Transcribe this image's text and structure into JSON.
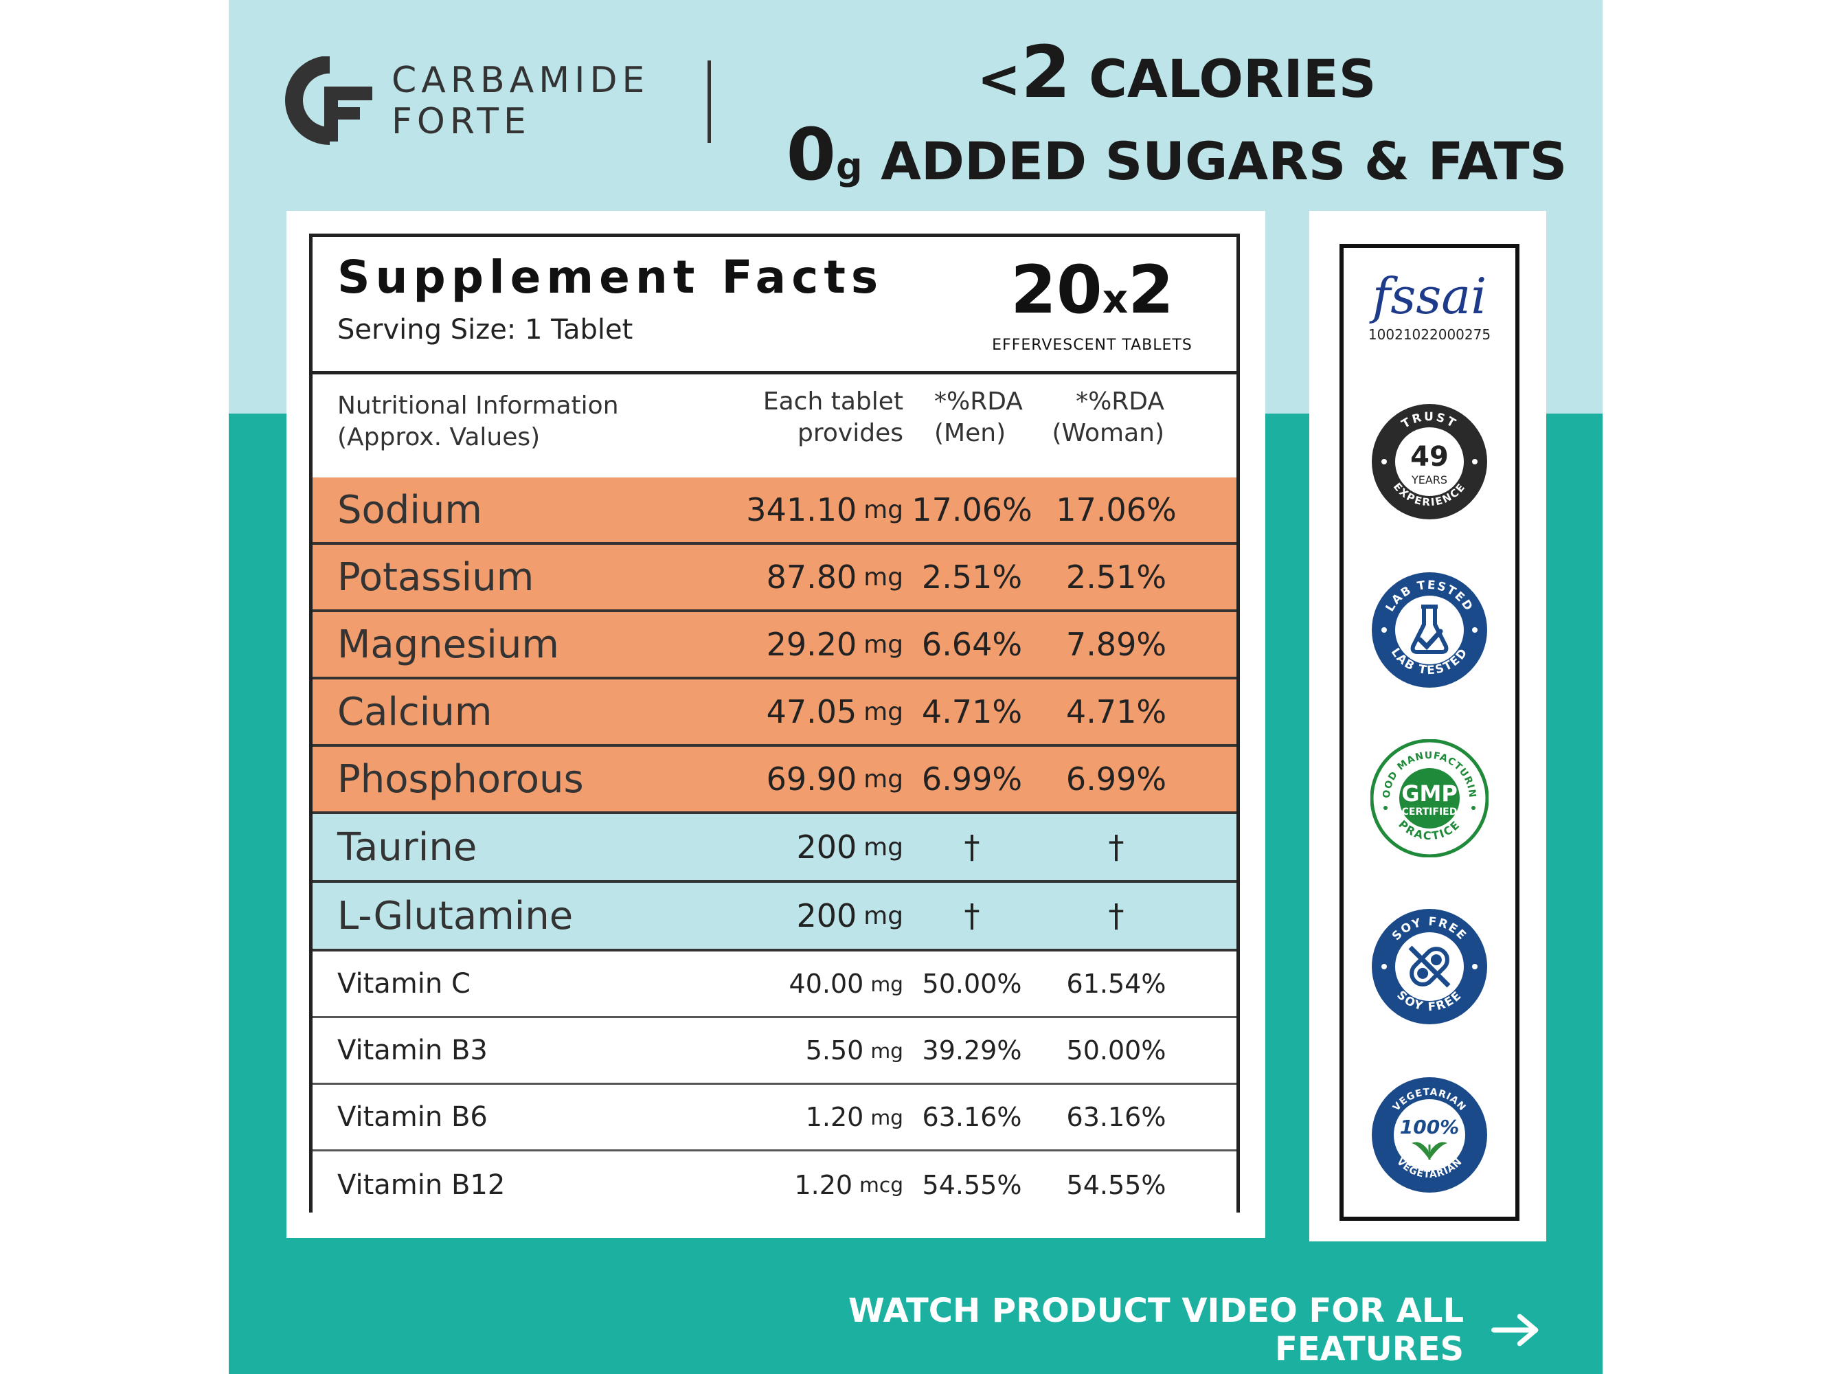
{
  "brand": {
    "line1": "CARBAMIDE",
    "line2": "FORTE"
  },
  "headline": {
    "line1_prefix": "<",
    "line1_number": "2",
    "line1_text": " CALORIES",
    "line2_number": "0",
    "line2_unit": "g",
    "line2_text": " ADDED SUGARS & FATS"
  },
  "facts": {
    "title": "Supplement Facts",
    "serving": "Serving Size: 1 Tablet",
    "pack_count": "20",
    "pack_x": "x",
    "pack_mult": "2",
    "pack_label": "EFFERVESCENT TABLETS",
    "col_info_line1": "Nutritional Information",
    "col_info_line2": "(Approx. Values)",
    "col_amount_line1": "Each tablet",
    "col_amount_line2": "provides",
    "col_men_line1": "*%RDA",
    "col_men_line2": "(Men)",
    "col_woman_line1": "*%RDA",
    "col_woman_line2": "(Woman)",
    "rows": [
      {
        "name": "Sodium",
        "amount": "341.10",
        "unit": "mg",
        "men": "17.06%",
        "woman": "17.06%"
      },
      {
        "name": "Potassium",
        "amount": "87.80",
        "unit": "mg",
        "men": "2.51%",
        "woman": "2.51%"
      },
      {
        "name": "Magnesium",
        "amount": "29.20",
        "unit": "mg",
        "men": "6.64%",
        "woman": "7.89%"
      },
      {
        "name": "Calcium",
        "amount": "47.05",
        "unit": "mg",
        "men": "4.71%",
        "woman": "4.71%"
      },
      {
        "name": "Phosphorous",
        "amount": "69.90",
        "unit": "mg",
        "men": "6.99%",
        "woman": "6.99%"
      },
      {
        "name": "Taurine",
        "amount": "200",
        "unit": "mg",
        "men": "†",
        "woman": "†"
      },
      {
        "name": "L-Glutamine",
        "amount": "200",
        "unit": "mg",
        "men": "†",
        "woman": "†"
      },
      {
        "name": "Vitamin C",
        "amount": "40.00",
        "unit": "mg",
        "men": "50.00%",
        "woman": "61.54%"
      },
      {
        "name": "Vitamin B3",
        "amount": "5.50",
        "unit": "mg",
        "men": "39.29%",
        "woman": "50.00%"
      },
      {
        "name": "Vitamin B6",
        "amount": "1.20",
        "unit": "mg",
        "men": "63.16%",
        "woman": "63.16%"
      },
      {
        "name": "Vitamin B12",
        "amount": "1.20",
        "unit": "mcg",
        "men": "54.55%",
        "woman": "54.55%"
      }
    ]
  },
  "badges": {
    "fssai_word": "fssai",
    "fssai_number": "10021022000275",
    "trust_top": "TRUST",
    "trust_years_num": "49",
    "trust_years_word": "YEARS",
    "trust_bottom": "EXPERIENCE",
    "lab_top": "LAB TESTED",
    "lab_bottom": "LAB TESTED",
    "gmp_ring": "GOOD MANUFACTURING",
    "gmp_main": "GMP",
    "gmp_sub": "CERTIFIED",
    "gmp_bottom": "PRACTICE",
    "soy_top": "SOY FREE",
    "soy_bottom": "SOY FREE",
    "veg_top": "VEGETARIAN",
    "veg_main": "100%",
    "veg_bottom": "VEGETARIAN"
  },
  "footer": {
    "cta": "WATCH PRODUCT VIDEO FOR ALL FEATURES"
  },
  "colors": {
    "top_bg": "#bde4e8",
    "bottom_bg": "#1bb0a0",
    "mineral_row": "#f29d6e",
    "amino_row": "#bde4e8",
    "badge_blue": "#1a4a8a",
    "gmp_green": "#1f8a3a"
  }
}
